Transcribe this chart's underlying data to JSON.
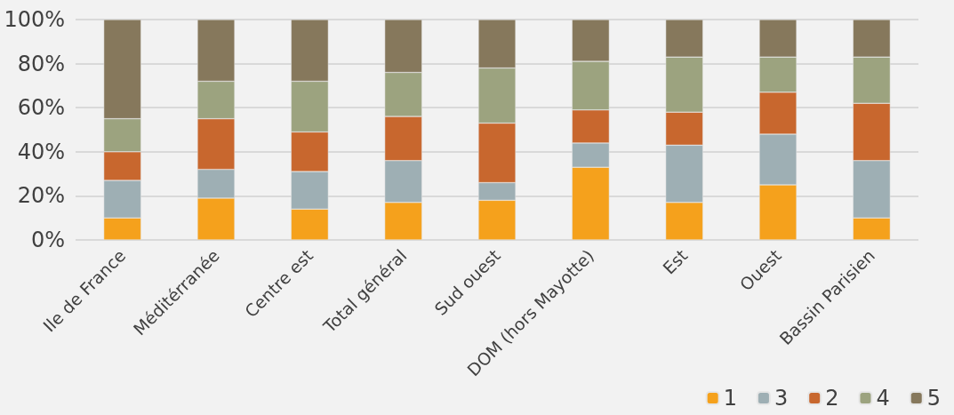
{
  "chart_data": {
    "type": "bar",
    "stacked": true,
    "categories": [
      "Ile de France",
      "Méditérranée",
      "Centre est",
      "Total général",
      "Sud ouest",
      "DOM (hors Mayotte)",
      "Est",
      "Ouest",
      "Bassin Parisien"
    ],
    "series": [
      {
        "name": "1",
        "color": "#f5a11c",
        "values": [
          10,
          19,
          14,
          17,
          18,
          33,
          17,
          25,
          10
        ]
      },
      {
        "name": "3",
        "color": "#9eafb4",
        "values": [
          17,
          13,
          17,
          19,
          8,
          11,
          26,
          23,
          26
        ]
      },
      {
        "name": "2",
        "color": "#c8672e",
        "values": [
          13,
          23,
          18,
          20,
          27,
          15,
          15,
          19,
          26
        ]
      },
      {
        "name": "4",
        "color": "#9ca37f",
        "values": [
          15,
          17,
          23,
          20,
          25,
          22,
          25,
          16,
          21
        ]
      },
      {
        "name": "5",
        "color": "#86785c",
        "values": [
          45,
          28,
          28,
          24,
          22,
          19,
          17,
          17,
          17
        ]
      }
    ],
    "ylim": [
      0,
      100
    ],
    "yticks": [
      {
        "value": 0,
        "label": "0%"
      },
      {
        "value": 20,
        "label": "20%"
      },
      {
        "value": 40,
        "label": "40%"
      },
      {
        "value": 60,
        "label": "60%"
      },
      {
        "value": 80,
        "label": "80%"
      },
      {
        "value": 100,
        "label": "100%"
      }
    ],
    "grid": "y",
    "legend": "bottom right"
  }
}
